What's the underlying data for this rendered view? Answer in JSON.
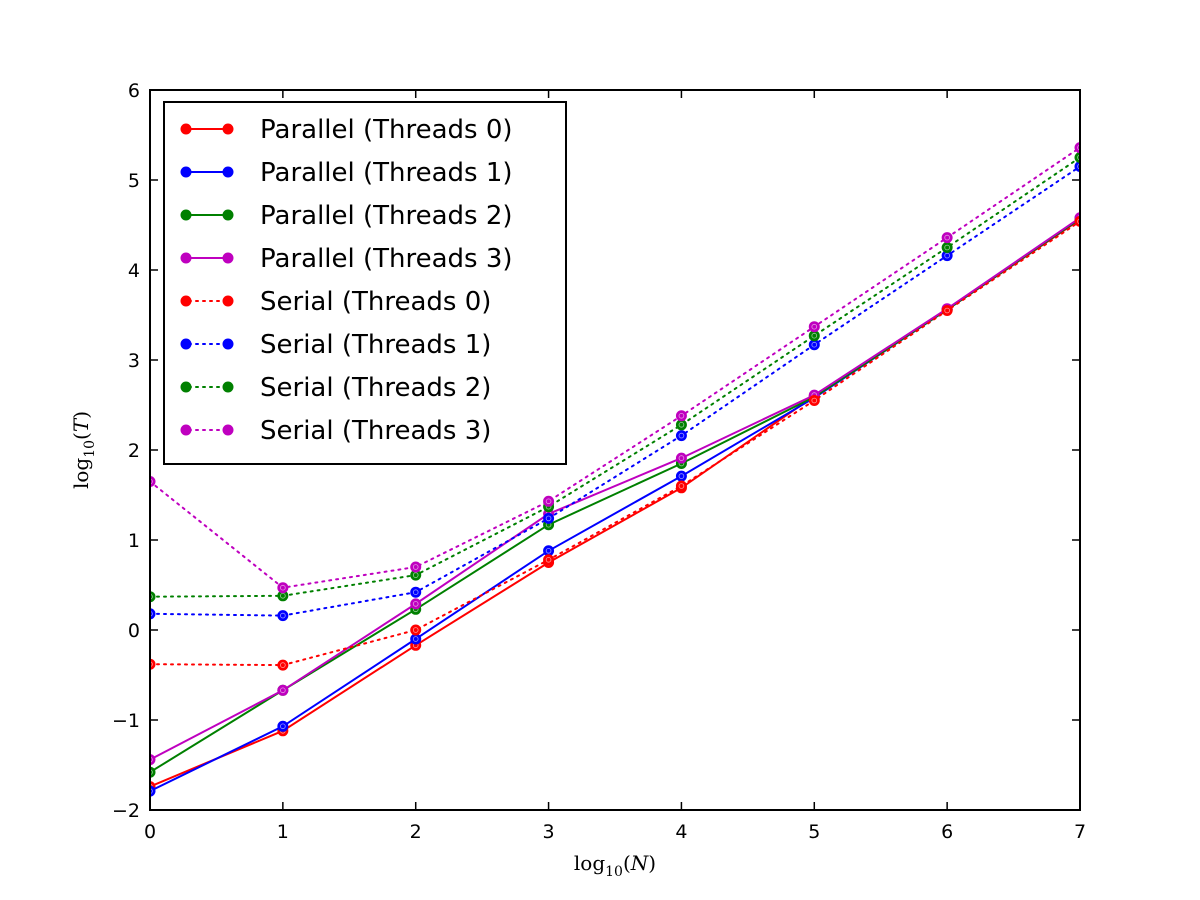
{
  "chart_data": {
    "type": "line",
    "xlabel": {
      "base": "log",
      "sub": "10",
      "arg": "N"
    },
    "ylabel": {
      "base": "log",
      "sub": "10",
      "arg": "T"
    },
    "xlim": [
      0,
      7
    ],
    "ylim": [
      -2,
      6
    ],
    "x_ticks": [
      "0",
      "1",
      "2",
      "3",
      "4",
      "5",
      "6",
      "7"
    ],
    "y_ticks": [
      "−2",
      "−1",
      "0",
      "1",
      "2",
      "3",
      "4",
      "5",
      "6"
    ],
    "grid": false,
    "legend_position": "upper-left",
    "x": [
      0,
      1,
      2,
      3,
      4,
      5,
      6,
      7
    ],
    "series": [
      {
        "name": "Parallel (Threads 0)",
        "color": "#ff0000",
        "style": "solid",
        "values": [
          -1.74,
          -1.12,
          -0.17,
          0.75,
          1.58,
          2.6,
          3.56,
          4.56
        ]
      },
      {
        "name": "Parallel (Threads 1)",
        "color": "#0000ff",
        "style": "solid",
        "values": [
          -1.79,
          -1.07,
          -0.1,
          0.88,
          1.71,
          2.58,
          3.56,
          4.57
        ]
      },
      {
        "name": "Parallel (Threads 2)",
        "color": "#008000",
        "style": "solid",
        "values": [
          -1.58,
          -0.67,
          0.23,
          1.17,
          1.85,
          2.59,
          3.56,
          4.57
        ]
      },
      {
        "name": "Parallel (Threads 3)",
        "color": "#bf00bf",
        "style": "solid",
        "values": [
          -1.44,
          -0.67,
          0.29,
          1.29,
          1.91,
          2.61,
          3.57,
          4.58
        ]
      },
      {
        "name": "Serial (Threads 0)",
        "color": "#ff0000",
        "style": "dotted",
        "values": [
          -0.38,
          -0.39,
          0.0,
          0.78,
          1.6,
          2.55,
          3.55,
          4.54
        ]
      },
      {
        "name": "Serial (Threads 1)",
        "color": "#0000ff",
        "style": "dotted",
        "values": [
          0.18,
          0.16,
          0.42,
          1.24,
          2.16,
          3.17,
          4.16,
          5.15
        ]
      },
      {
        "name": "Serial (Threads 2)",
        "color": "#008000",
        "style": "dotted",
        "values": [
          0.37,
          0.38,
          0.61,
          1.37,
          2.28,
          3.27,
          4.25,
          5.25
        ]
      },
      {
        "name": "Serial (Threads 3)",
        "color": "#bf00bf",
        "style": "dotted",
        "values": [
          1.65,
          0.47,
          0.7,
          1.43,
          2.38,
          3.37,
          4.36,
          5.36
        ]
      }
    ]
  }
}
